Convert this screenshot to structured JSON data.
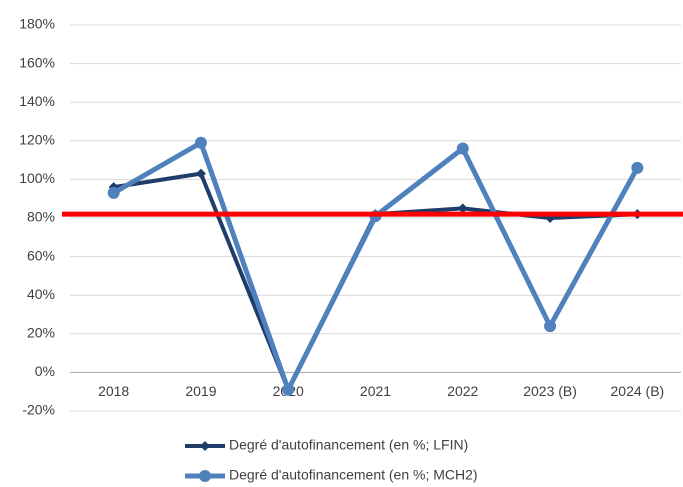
{
  "chart_data": {
    "type": "line",
    "categories": [
      "2018",
      "2019",
      "2020",
      "2021",
      "2022",
      "2023 (B)",
      "2024 (B)"
    ],
    "series": [
      {
        "name": "Degré d'autofinancement (en %; LFIN)",
        "color": "#1f3d6b",
        "marker": "diamond",
        "values": [
          96,
          103,
          -9,
          82,
          85,
          80,
          82
        ]
      },
      {
        "name": "Degré d'autofinancement (en %; MCH2)",
        "color": "#4f81bd",
        "marker": "circle",
        "values": [
          93,
          119,
          -9,
          81,
          116,
          24,
          106
        ]
      }
    ],
    "ylim": [
      -20,
      180
    ],
    "yticks": [
      {
        "value": -20,
        "label": "-20%"
      },
      {
        "value": 0,
        "label": "0%"
      },
      {
        "value": 20,
        "label": "20%"
      },
      {
        "value": 40,
        "label": "40%"
      },
      {
        "value": 60,
        "label": "60%"
      },
      {
        "value": 80,
        "label": "80%"
      },
      {
        "value": 100,
        "label": "100%"
      },
      {
        "value": 120,
        "label": "120%"
      },
      {
        "value": 140,
        "label": "140%"
      },
      {
        "value": 160,
        "label": "160%"
      },
      {
        "value": 180,
        "label": "180%"
      }
    ],
    "grid": true,
    "reference_line": {
      "value": 82,
      "color": "#ff0000"
    },
    "legend": "bottom"
  }
}
